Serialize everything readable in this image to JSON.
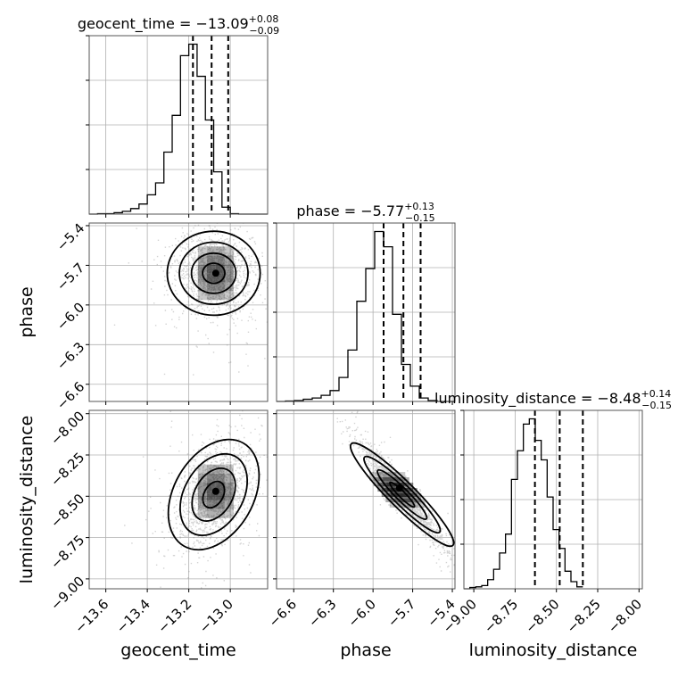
{
  "chart_data": {
    "type": "corner",
    "parameters": [
      {
        "name": "geocent_time",
        "axis_label": "geocent_time",
        "title": "geocent_time = −13.09",
        "title_value": "−13.09",
        "err_plus": "+0.08",
        "err_minus": "−0.09",
        "median": -13.09,
        "q16": -13.18,
        "q84": -13.01,
        "range": [
          -13.68,
          -12.82
        ],
        "ticks": [
          -13.6,
          -13.4,
          -13.2,
          -13.0
        ],
        "tick_labels": [
          "−13.6",
          "−13.4",
          "−13.2",
          "−13.0"
        ],
        "hist": {
          "edges_start": -13.68,
          "bin_width": 0.04,
          "counts": [
            0,
            1,
            1,
            3,
            6,
            12,
            22,
            42,
            68,
            135,
            215,
            345,
            370,
            300,
            205,
            92,
            15,
            1,
            0,
            0,
            0,
            0
          ]
        }
      },
      {
        "name": "phase",
        "axis_label": "phase",
        "title": "phase = −5.77",
        "title_value": "−5.77",
        "err_plus": "+0.13",
        "err_minus": "−0.15",
        "median": -5.77,
        "q16": -5.92,
        "q84": -5.64,
        "range": [
          -6.73,
          -5.38
        ],
        "ticks": [
          -6.6,
          -6.3,
          -6.0,
          -5.7,
          -5.4
        ],
        "tick_labels": [
          "−6.6",
          "−6.3",
          "−6.0",
          "−5.7",
          "−5.4"
        ],
        "hist": {
          "edges_start": -6.73,
          "bin_width": 0.0675,
          "counts": [
            0,
            1,
            2,
            5,
            8,
            14,
            25,
            55,
            118,
            230,
            305,
            390,
            355,
            200,
            85,
            35,
            8,
            2,
            0,
            0
          ]
        }
      },
      {
        "name": "luminosity_distance",
        "axis_label": "luminosity_distance",
        "title": "luminosity_distance = −8.48",
        "title_value": "−8.48",
        "err_plus": "+0.14",
        "err_minus": "−0.15",
        "median": -8.48,
        "q16": -8.63,
        "q84": -8.34,
        "range": [
          -9.06,
          -7.98
        ],
        "ticks": [
          -9.0,
          -8.75,
          -8.5,
          -8.25,
          -8.0
        ],
        "tick_labels": [
          "−9.00",
          "−8.75",
          "−8.50",
          "−8.25",
          "−8.00"
        ],
        "hist": {
          "edges_start": -9.06,
          "bin_width": 0.036,
          "counts": [
            0,
            2,
            3,
            5,
            14,
            30,
            55,
            84,
            168,
            212,
            253,
            261,
            228,
            198,
            141,
            91,
            62,
            27,
            11,
            3
          ]
        }
      }
    ],
    "pairs": [
      {
        "x": "geocent_time",
        "y": "phase",
        "center": [
          -13.08,
          -5.76
        ],
        "sd": [
          0.09,
          0.15
        ],
        "corr": -0.1,
        "density_peak": [
          -13.07,
          -5.76
        ]
      },
      {
        "x": "geocent_time",
        "y": "luminosity_distance",
        "center": [
          -13.08,
          -8.49
        ],
        "sd": [
          0.09,
          0.15
        ],
        "corr": 0.4,
        "density_peak": [
          -13.07,
          -8.47
        ]
      },
      {
        "x": "phase",
        "y": "luminosity_distance",
        "center": [
          -5.78,
          -8.49
        ],
        "sd": [
          0.15,
          0.15
        ],
        "corr": -0.96,
        "density_peak": [
          -5.8,
          -8.45
        ]
      }
    ],
    "median_marker": "dashed vertical lines at 16th, 50th, 84th percentiles",
    "grid": true,
    "colors": {
      "line": "#000000",
      "scatter": "#808080",
      "grid": "#b0b0b0",
      "density": "#000000"
    }
  }
}
